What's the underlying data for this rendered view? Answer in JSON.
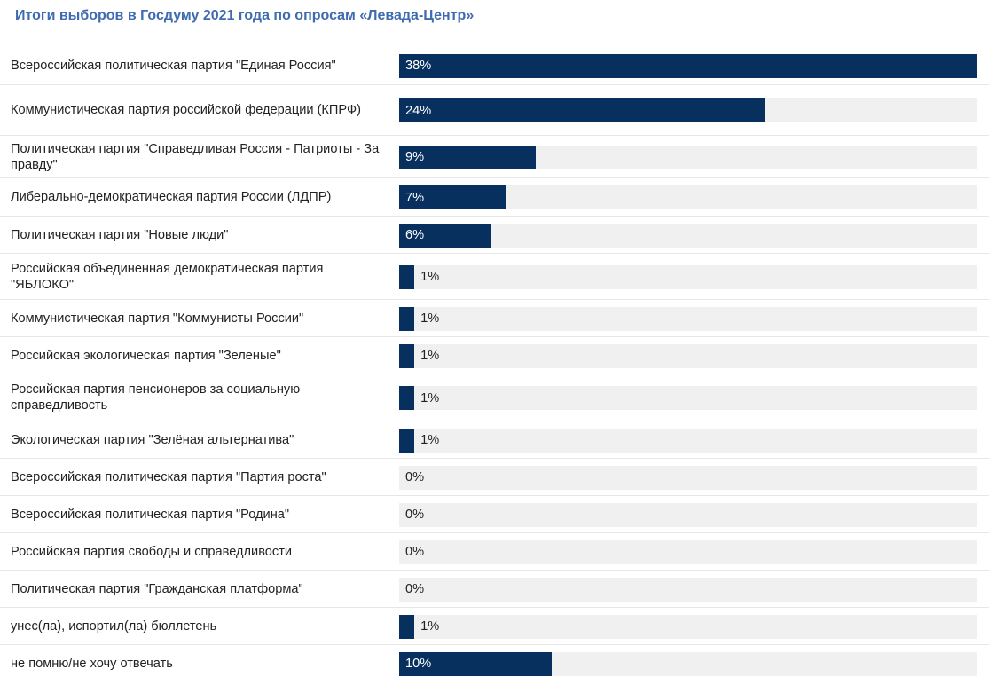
{
  "title": "Итоги выборов в Госдуму 2021 года по опросам «Левада-Центр»",
  "colors": {
    "bar": "#07305f",
    "track": "#f0f0f0",
    "title": "#3f6bb0"
  },
  "chart_data": {
    "type": "bar",
    "orientation": "horizontal",
    "title": "Итоги выборов в Госдуму 2021 года по опросам «Левада-Центр»",
    "xlim": [
      0,
      38
    ],
    "categories": [
      "Всероссийская политическая партия \"Единая Россия\"",
      "Коммунистическая партия российской федерации (КПРФ)",
      "Политическая партия \"Справедливая Россия - Патриоты - За правду\"",
      "Либерально-демократическая партия России (ЛДПР)",
      "Политическая партия \"Новые люди\"",
      "Российская объединенная демократическая партия \"ЯБЛОКО\"",
      "Коммунистическая партия \"Коммунисты России\"",
      "Российская экологическая партия \"Зеленые\"",
      "Российская партия пенсионеров за социальную справедливость",
      "Экологическая партия \"Зелёная альтернатива\"",
      "Всероссийская политическая партия \"Партия роста\"",
      "Всероссийская политическая партия \"Родина\"",
      "Российская партия свободы и справедливости",
      "Политическая партия \"Гражданская платформа\"",
      "унес(ла), испортил(ла) бюллетень",
      "не помню/не хочу отвечать"
    ],
    "values": [
      38,
      24,
      9,
      7,
      6,
      1,
      1,
      1,
      1,
      1,
      0,
      0,
      0,
      0,
      1,
      10
    ],
    "value_labels": [
      "38%",
      "24%",
      "9%",
      "7%",
      "6%",
      "1%",
      "1%",
      "1%",
      "1%",
      "1%",
      "0%",
      "0%",
      "0%",
      "0%",
      "1%",
      "10%"
    ]
  }
}
